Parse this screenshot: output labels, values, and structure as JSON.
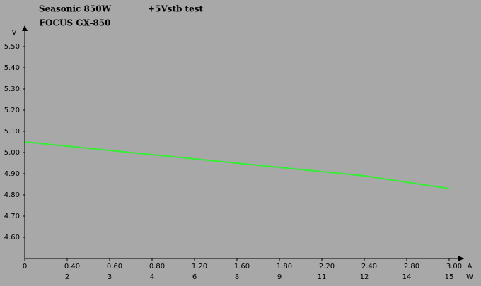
{
  "chart_data": {
    "type": "line",
    "title": "Seasonic 850W",
    "subtitle": "FOCUS GX-850",
    "annotation": "+5Vstb test",
    "y_label": "V",
    "x_label": "A",
    "x2_label": "W",
    "categories": [
      "0",
      "0.40",
      "0.60",
      "0.80",
      "1.20",
      "1.60",
      "1.80",
      "2.20",
      "2.40",
      "2.80",
      "3.00"
    ],
    "categories2": [
      null,
      "2",
      "3",
      "4",
      "6",
      "8",
      "9",
      "11",
      "12",
      "14",
      "15"
    ],
    "series": [
      {
        "name": "+5Vstb",
        "color": "#33ee33",
        "values": [
          5.05,
          5.03,
          5.01,
          4.99,
          4.97,
          4.95,
          4.93,
          4.91,
          4.89,
          4.86,
          4.83
        ]
      }
    ],
    "ylim": [
      4.5,
      5.6
    ],
    "yticks": [
      {
        "value": 4.6,
        "label": "4.60"
      },
      {
        "value": 4.7,
        "label": "4.70"
      },
      {
        "value": 4.8,
        "label": "4.80"
      },
      {
        "value": 4.9,
        "label": "4.90"
      },
      {
        "value": 5.0,
        "label": "5.00"
      },
      {
        "value": 5.1,
        "label": "5.10"
      },
      {
        "value": 5.2,
        "label": "5.20"
      },
      {
        "value": 5.3,
        "label": "5.30"
      },
      {
        "value": 5.4,
        "label": "5.40"
      },
      {
        "value": 5.5,
        "label": "5.50"
      }
    ],
    "grid": false
  }
}
